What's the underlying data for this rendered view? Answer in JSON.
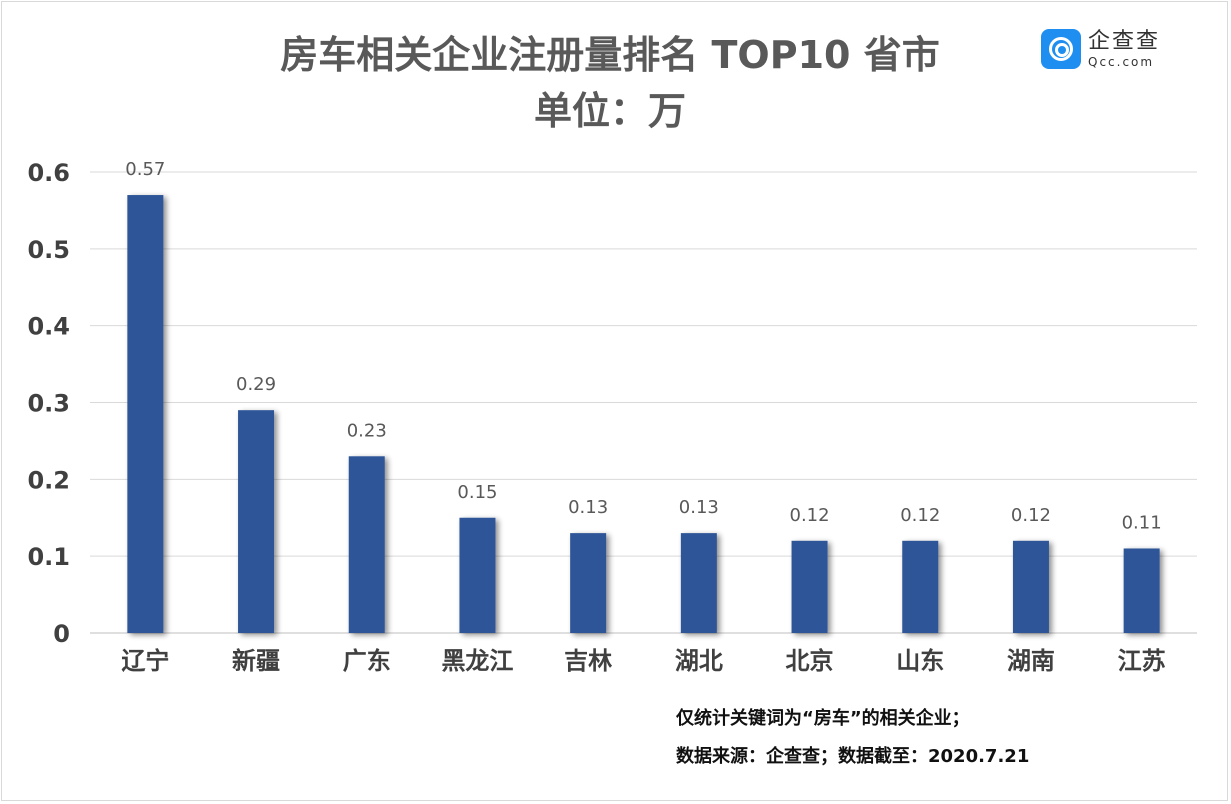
{
  "title": "房车相关企业注册量排名 TOP10 省市",
  "subtitle": "单位：万",
  "logo": {
    "cn": "企查查",
    "en": "Qcc.com"
  },
  "notes": [
    "仅统计关键词为“房车”的相关企业；",
    "数据来源：企查查；数据截至：2020.7.21"
  ],
  "chart_data": {
    "type": "bar",
    "title": "房车相关企业注册量排名 TOP10 省市",
    "subtitle": "单位：万",
    "categories": [
      "辽宁",
      "新疆",
      "广东",
      "黑龙江",
      "吉林",
      "湖北",
      "北京",
      "山东",
      "湖南",
      "江苏"
    ],
    "values": [
      0.57,
      0.29,
      0.23,
      0.15,
      0.13,
      0.13,
      0.12,
      0.12,
      0.12,
      0.11
    ],
    "ylim": [
      0,
      0.6
    ],
    "yticks": [
      "0",
      "0.1",
      "0.2",
      "0.3",
      "0.4",
      "0.5",
      "0.6"
    ],
    "grid": true,
    "legend": "none",
    "bar_color": "#2f5597"
  }
}
